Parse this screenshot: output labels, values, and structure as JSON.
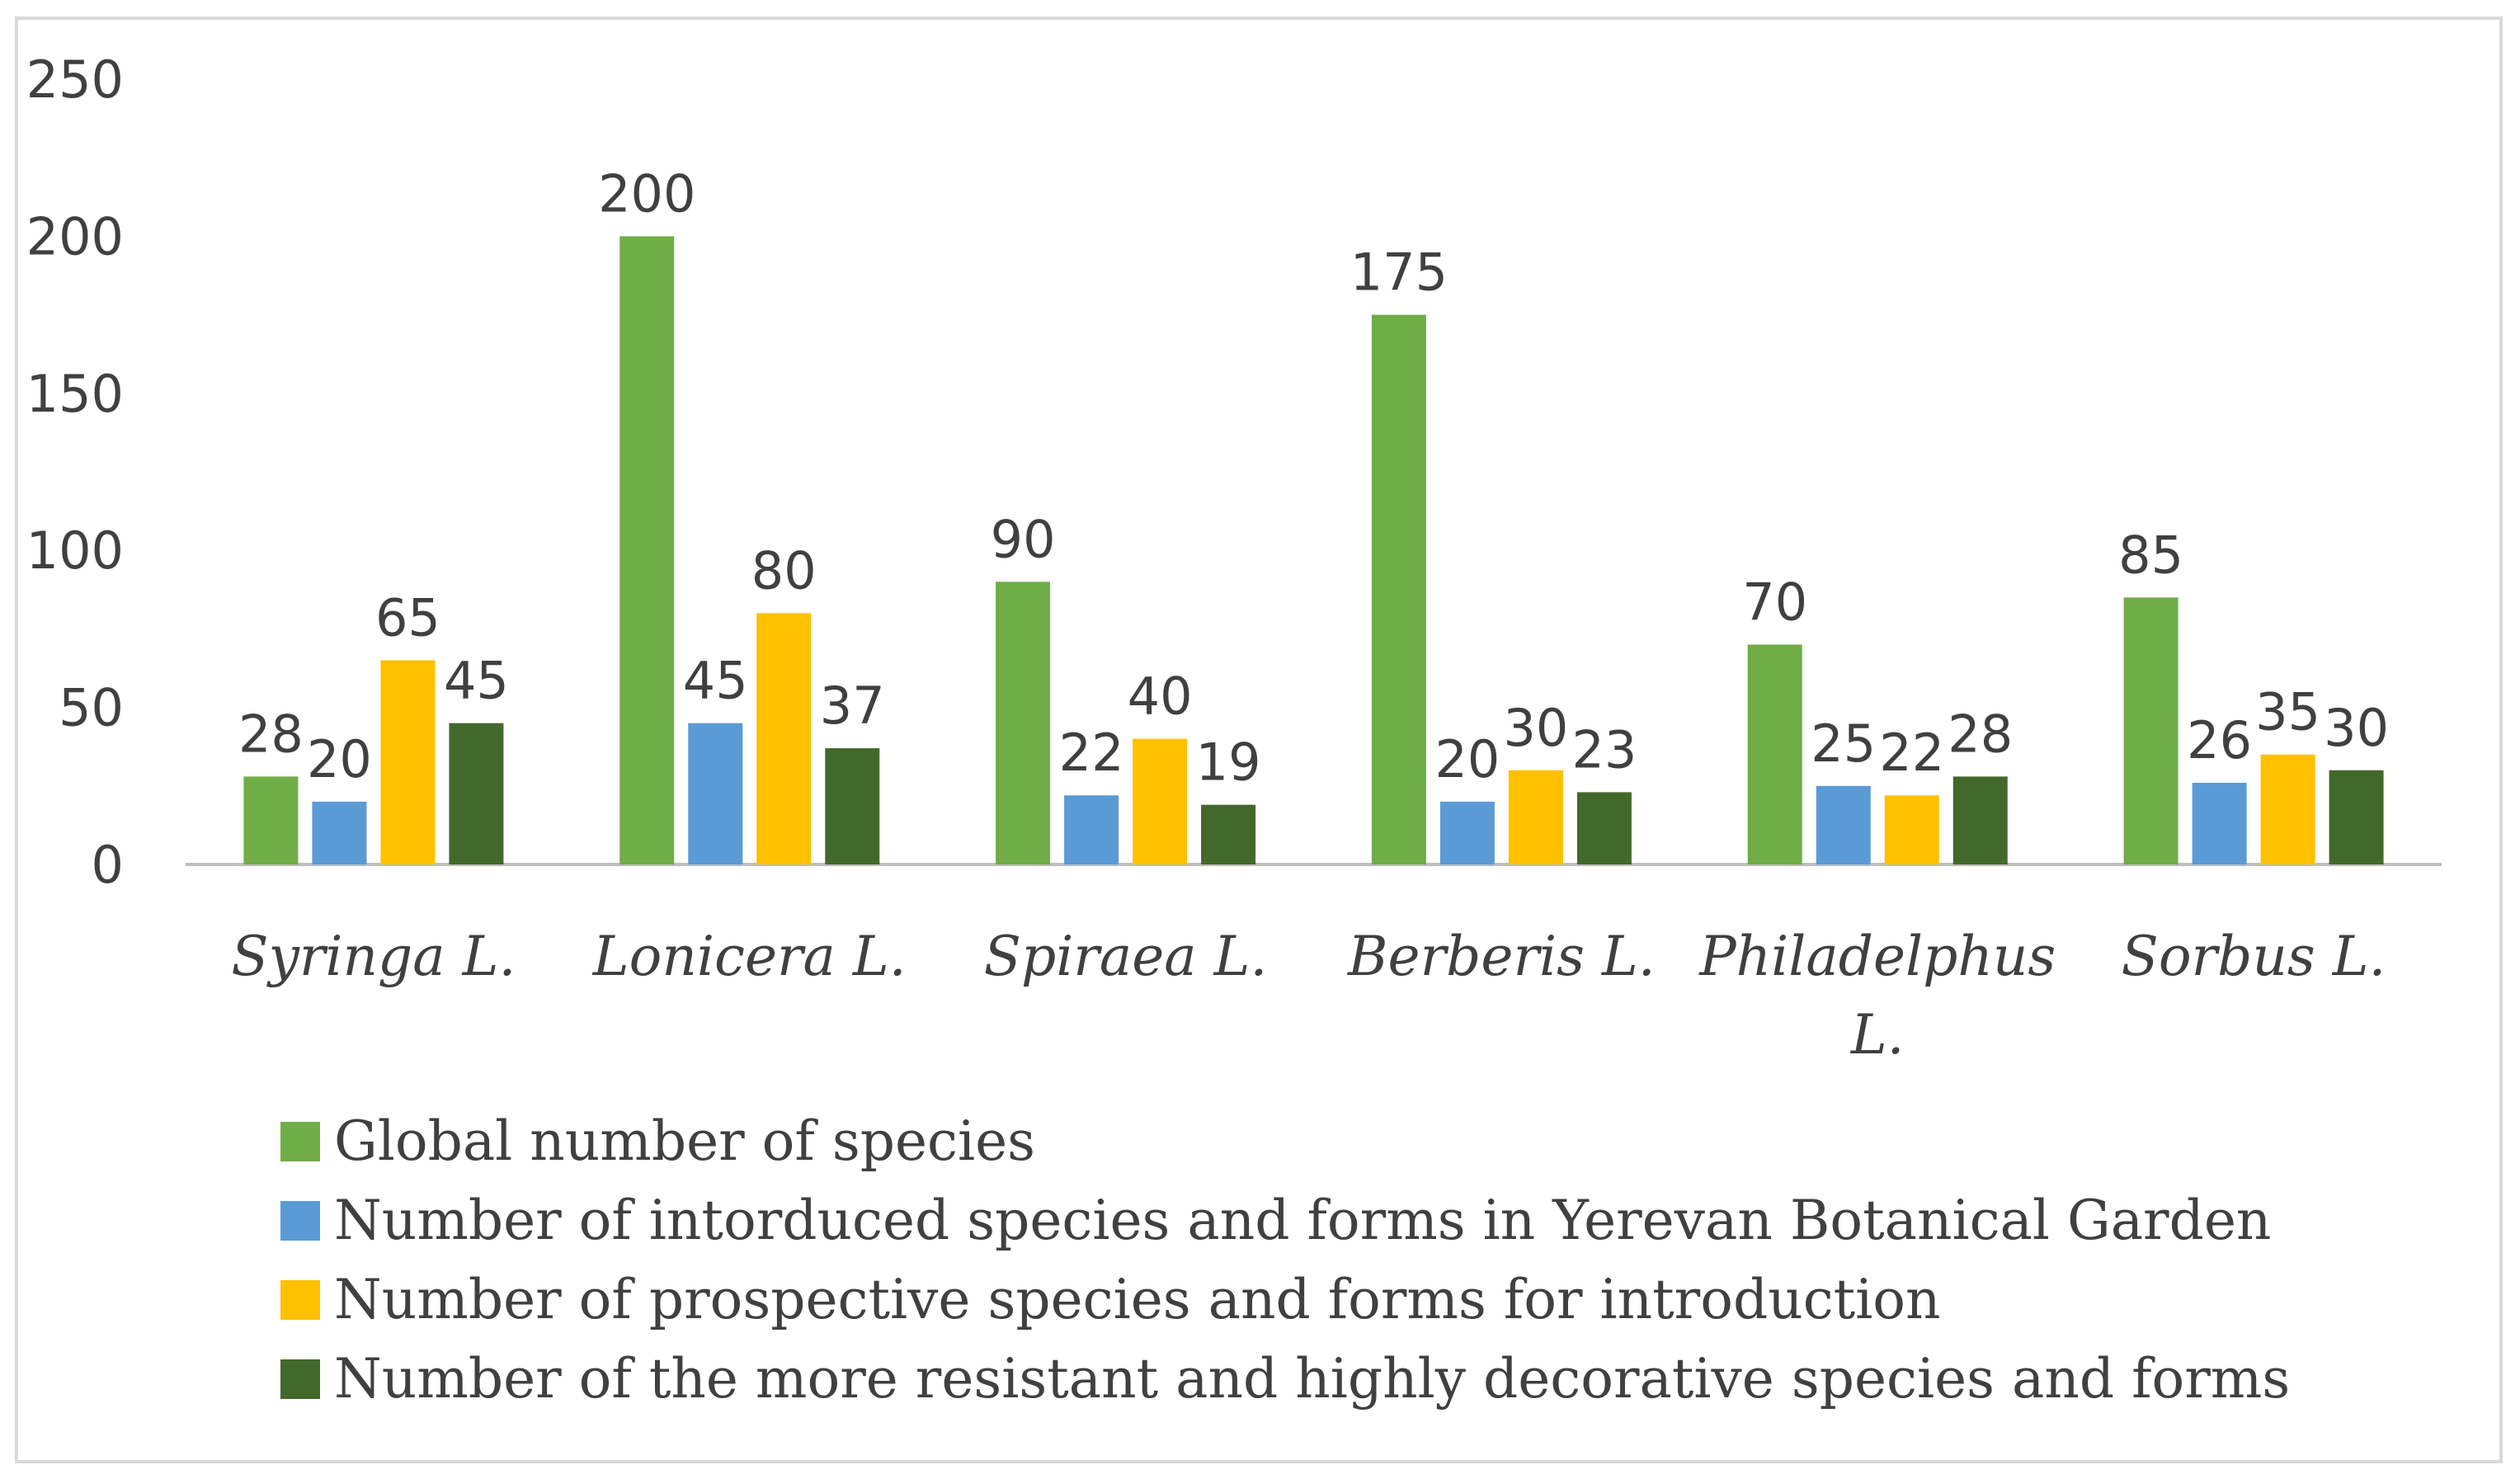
{
  "chart_data": {
    "type": "bar",
    "title": "",
    "xlabel": "",
    "ylabel": "",
    "ylim": [
      0,
      250
    ],
    "yticks": [
      0,
      50,
      100,
      150,
      200,
      250
    ],
    "grid": false,
    "legend_position": "bottom-left",
    "data_labels": true,
    "categories": [
      [
        "Syringa L."
      ],
      [
        "Lonicera L."
      ],
      [
        "Spiraea L."
      ],
      [
        "Berberis L."
      ],
      [
        "Philadelphus",
        "L."
      ],
      [
        "Sorbus L."
      ]
    ],
    "series": [
      {
        "name": "Global number of species",
        "color": "#70AD47",
        "values": [
          28,
          200,
          90,
          175,
          70,
          85
        ]
      },
      {
        "name": "Number of intorduced species and forms in Yerevan Botanical Garden",
        "color": "#5B9BD5",
        "values": [
          20,
          45,
          22,
          20,
          25,
          26
        ]
      },
      {
        "name": "Number of prospective species and forms for introduction",
        "color": "#FFC000",
        "values": [
          65,
          80,
          40,
          30,
          22,
          35
        ]
      },
      {
        "name": "Number of the more resistant and highly decorative species and forms",
        "color": "#43682B",
        "values": [
          45,
          37,
          19,
          23,
          28,
          30
        ]
      }
    ]
  }
}
